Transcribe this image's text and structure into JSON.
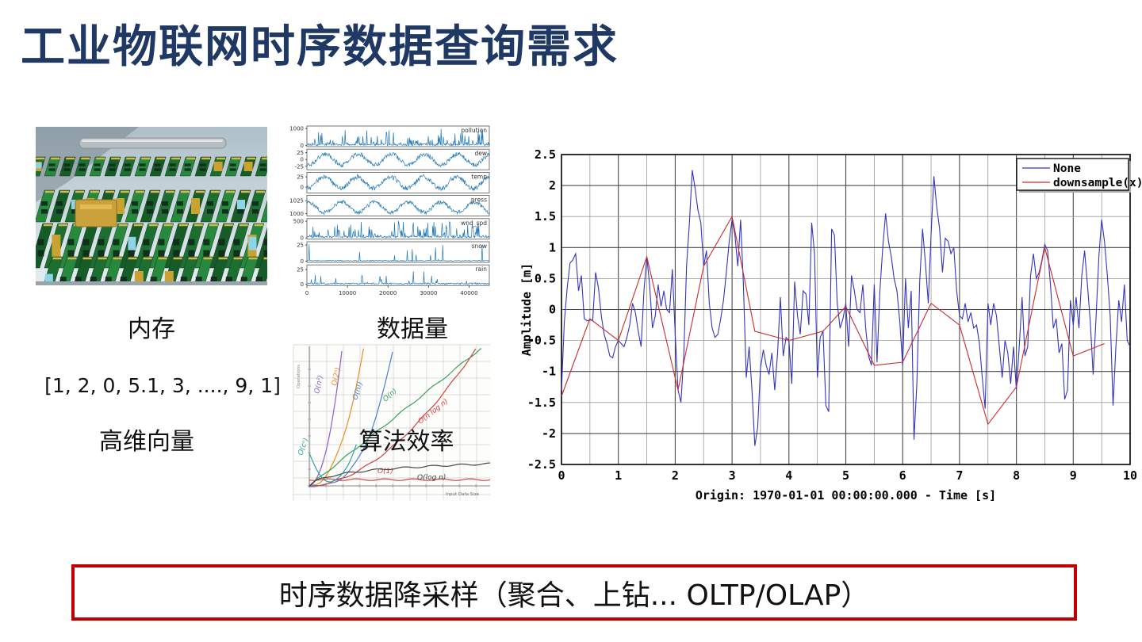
{
  "slide": {
    "title": "工业物联网时序数据查询需求",
    "title_color": "#1f3864",
    "background": "#ffffff"
  },
  "captions": {
    "memory": "内存",
    "data_volume": "数据量",
    "vector_example": "[1, 2, 0, 5.1, 3, ...., 9, 1]",
    "high_dim_vector": "高维向量",
    "algo_efficiency": "算法效率"
  },
  "banner": {
    "text": "时序数据降采样（聚合、上钻... OLTP/OLAP）",
    "border_color": "#c00000",
    "text_color": "#111111"
  },
  "chart_data": [
    {
      "id": "downsample-comparison",
      "type": "line",
      "title": "",
      "xlabel": "Origin: 1970-01-01 00:00:00.000 - Time  [s]",
      "ylabel": "Amplitude  [m]",
      "xlim": [
        0,
        10
      ],
      "ylim": [
        -2.5,
        2.5
      ],
      "xtick_labels": [
        "0",
        "1",
        "2",
        "3",
        "4",
        "5",
        "6",
        "7",
        "8",
        "9",
        "10"
      ],
      "ytick_labels": [
        "2.5",
        "2",
        "1.5",
        "1",
        "0.5",
        "0",
        "-0.5",
        "-1",
        "-1.5",
        "-2",
        "-2.5"
      ],
      "yticks": [
        2.5,
        2,
        1.5,
        1,
        0.5,
        0,
        -0.5,
        -1,
        -1.5,
        -2,
        -2.5
      ],
      "grid": true,
      "legend_position": "top-right",
      "series": [
        {
          "name": "None",
          "color": "#3434bd",
          "x_start": 0,
          "x_step": 0.05,
          "values": [
            -1.3,
            -0.2,
            0.35,
            0.75,
            0.8,
            0.9,
            0.3,
            0.55,
            -0.15,
            -0.18,
            -0.17,
            -0.17,
            0.6,
            0.35,
            -0.1,
            -0.4,
            -0.55,
            -0.75,
            -0.78,
            -0.6,
            -0.5,
            -0.55,
            -0.6,
            -0.45,
            -0.25,
            0.1,
            -0.05,
            -0.35,
            -0.6,
            0.3,
            0.85,
            0.4,
            -0.3,
            -0.1,
            0.4,
            0.05,
            0.3,
            0.0,
            -0.05,
            0.65,
            -0.4,
            -1.3,
            -1.5,
            -0.75,
            0.7,
            1.4,
            2.25,
            1.95,
            1.6,
            1.4,
            0.7,
            0.95,
            0.1,
            -0.3,
            -0.45,
            -0.4,
            -0.15,
            0.15,
            0.6,
            1.1,
            1.45,
            1.2,
            0.7,
            1.45,
            0.4,
            -1.1,
            -0.6,
            -1.3,
            -2.2,
            -1.9,
            -0.95,
            -0.65,
            -0.9,
            -1.05,
            -0.7,
            -1.3,
            -0.7,
            0.2,
            -0.75,
            -0.45,
            -0.5,
            -1.2,
            0.45,
            -0.1,
            -0.4,
            0.3,
            0.25,
            -0.25,
            1.4,
            0.9,
            -1.1,
            -0.45,
            -0.35,
            -1.55,
            -1.65,
            1.3,
            1.2,
            0.1,
            -0.3,
            -0.15,
            0.1,
            -0.6,
            0.55,
            0.3,
            0.0,
            -0.05,
            0.4,
            -0.3,
            -0.75,
            -0.9,
            0.4,
            -0.85,
            0.3,
            1.0,
            1.55,
            1.1,
            0.85,
            0.5,
            0.3,
            -0.2,
            -0.9,
            0.5,
            -0.3,
            0.3,
            -2.1,
            -1.2,
            0.45,
            1.3,
            0.75,
            0.1,
            1.2,
            2.15,
            1.65,
            1.3,
            0.6,
            1.15,
            1.1,
            0.9,
            1.0,
            0.3,
            -0.1,
            -0.15,
            0.1,
            -0.2,
            -0.05,
            -0.3,
            -0.25,
            -0.55,
            -1.1,
            -1.6,
            0.1,
            -0.25,
            0.1,
            -0.1,
            -0.6,
            -1.1,
            -0.5,
            -0.7,
            -1.2,
            -0.6,
            -1.3,
            -0.6,
            0.2,
            -0.75,
            -0.6,
            0.55,
            0.9,
            0.5,
            0.6,
            0.8,
            1.05,
            0.95,
            0.4,
            -0.3,
            -0.15,
            -0.7,
            -0.55,
            -1.45,
            -1.3,
            0.15,
            -0.25,
            0.2,
            -0.3,
            0.55,
            0.95,
            0.4,
            -0.2,
            -1.05,
            -0.15,
            0.85,
            1.45,
            1.1,
            0.55,
            -0.1,
            -1.55,
            -0.6,
            0.15,
            -0.2,
            0.4,
            -0.5,
            -0.6
          ]
        },
        {
          "name": "downsample(x)",
          "color": "#cc2b2b",
          "points": [
            [
              0,
              -1.4
            ],
            [
              0.5,
              -0.15
            ],
            [
              1.0,
              -0.5
            ],
            [
              1.5,
              0.85
            ],
            [
              2.05,
              -1.3
            ],
            [
              2.5,
              0.7
            ],
            [
              3.0,
              1.5
            ],
            [
              3.4,
              -0.35
            ],
            [
              4.0,
              -0.5
            ],
            [
              4.6,
              -0.35
            ],
            [
              5.0,
              0.05
            ],
            [
              5.5,
              -0.9
            ],
            [
              6.0,
              -0.85
            ],
            [
              6.5,
              0.1
            ],
            [
              7.0,
              -0.25
            ],
            [
              7.5,
              -1.85
            ],
            [
              8.0,
              -1.25
            ],
            [
              8.5,
              1.0
            ],
            [
              9.0,
              -0.75
            ],
            [
              9.55,
              -0.55
            ]
          ]
        }
      ]
    },
    {
      "id": "sensor-multipanel",
      "type": "line",
      "line_color": "#1f77b4",
      "xlim": [
        0,
        45000
      ],
      "xticks": [
        0,
        10000,
        20000,
        30000,
        40000
      ],
      "xtick_labels": [
        "0",
        "10000",
        "20000",
        "30000",
        "40000"
      ],
      "panels": [
        {
          "label": "pollution",
          "ytick_labels": [
            "1000",
            "0"
          ],
          "yticks": [
            1000,
            0
          ],
          "vmin": -60,
          "vmax": 1150,
          "kind": "spikes",
          "spike_max": 1000
        },
        {
          "label": "dew",
          "ytick_labels": [
            "25",
            "0",
            "-25"
          ],
          "yticks": [
            25,
            0,
            -25
          ],
          "vmin": -38,
          "vmax": 38,
          "kind": "sine",
          "amplitude": 20,
          "offset": 0,
          "cycles": 5.5,
          "noise": 8,
          "phase": -1.9
        },
        {
          "label": "temp",
          "ytick_labels": [
            "25",
            "0"
          ],
          "yticks": [
            25,
            0
          ],
          "vmin": -14,
          "vmax": 36,
          "kind": "sine",
          "amplitude": 14,
          "offset": 11,
          "cycles": 5.5,
          "noise": 6,
          "phase": -1.7
        },
        {
          "label": "press",
          "ytick_labels": [
            "1025",
            "1000"
          ],
          "yticks": [
            1025,
            1000
          ],
          "vmin": 995,
          "vmax": 1035,
          "kind": "sine",
          "amplitude": 10,
          "offset": 1012,
          "cycles": 5.5,
          "noise": 4,
          "phase": 1.3
        },
        {
          "label": "wnd_spd",
          "ytick_labels": [
            "500",
            "0"
          ],
          "yticks": [
            500,
            0
          ],
          "vmin": -40,
          "vmax": 580,
          "kind": "spikes",
          "spike_max": 480
        },
        {
          "label": "snow",
          "ytick_labels": [
            "25",
            "0"
          ],
          "yticks": [
            25,
            0
          ],
          "vmin": -2,
          "vmax": 30,
          "kind": "sparse",
          "spike_max": 26
        },
        {
          "label": "rain",
          "ytick_labels": [
            "25",
            "0"
          ],
          "yticks": [
            25,
            0
          ],
          "vmin": -2,
          "vmax": 33,
          "kind": "sparse2",
          "spike_max": 30
        }
      ]
    },
    {
      "id": "big-o-complexity",
      "type": "line",
      "xlabel": "Input Data Size",
      "ylabel": "Operations",
      "curves": [
        {
          "label": "O(n²)",
          "color": "#8a5fd1",
          "shape": "poly",
          "k": 30,
          "p": 2
        },
        {
          "label": "O(2ⁿ)",
          "color": "#ef8c1f",
          "shape": "poly",
          "k": 14,
          "p": 2.2
        },
        {
          "label": "O(n!)",
          "color": "#4a7fd4",
          "shape": "poly",
          "k": 10,
          "p": 3
        },
        {
          "label": "O(n)",
          "color": "#3aa05a",
          "shape": "poly",
          "k": 1.05,
          "p": 1
        },
        {
          "label": "O(n log n)",
          "color": "#d04545",
          "shape": "poly",
          "k": 1.15,
          "p": 1.8
        },
        {
          "label": "O(1)",
          "color": "#d04545",
          "shape": "const",
          "k": 0.045,
          "p": 0
        },
        {
          "label": "O(log n)",
          "color": "#444444",
          "shape": "log",
          "k": 0.16,
          "p": 0
        },
        {
          "label": "O(cⁿ)",
          "color": "#2ba3a0",
          "shape": "hook",
          "k": 14,
          "p": 0.03
        }
      ]
    }
  ]
}
